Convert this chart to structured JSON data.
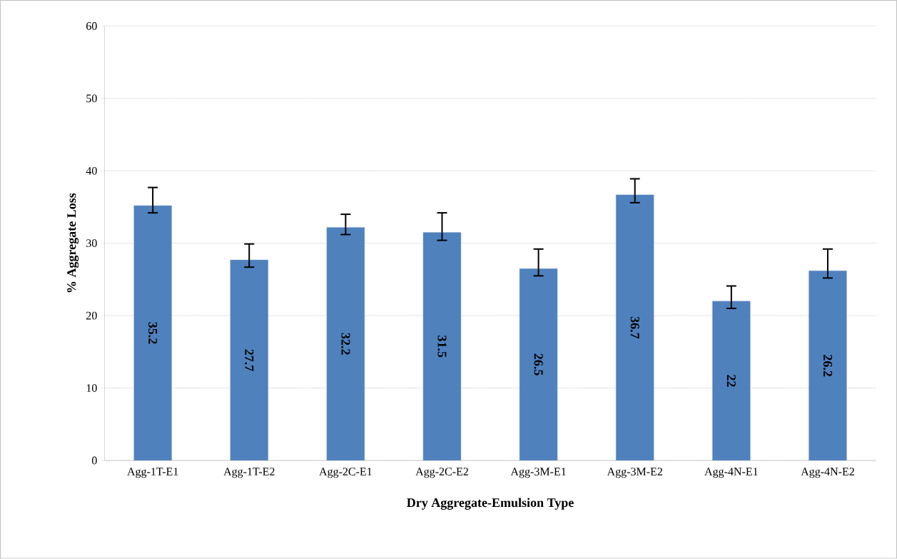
{
  "chart_data": {
    "type": "bar",
    "xlabel": "Dry Aggregate-Emulsion Type",
    "ylabel": "% Aggregate Loss",
    "categories": [
      "Agg-1T-E1",
      "Agg-1T-E2",
      "Agg-2C-E1",
      "Agg-2C-E2",
      "Agg-3M-E1",
      "Agg-3M-E2",
      "Agg-4N-E1",
      "Agg-4N-E2"
    ],
    "values": [
      35.2,
      27.7,
      32.2,
      31.5,
      26.5,
      36.7,
      22,
      26.2
    ],
    "errors": [
      [
        34.2,
        37.7
      ],
      [
        26.7,
        29.9
      ],
      [
        31.2,
        34.0
      ],
      [
        30.4,
        34.2
      ],
      [
        25.5,
        29.2
      ],
      [
        35.6,
        38.9
      ],
      [
        21.0,
        24.1
      ],
      [
        25.2,
        29.2
      ]
    ],
    "color": "#4f81bd",
    "ylim": [
      0,
      60
    ],
    "yticks": [
      0,
      10,
      20,
      30,
      40,
      50,
      60
    ],
    "grid": "y",
    "data_labels": true
  }
}
